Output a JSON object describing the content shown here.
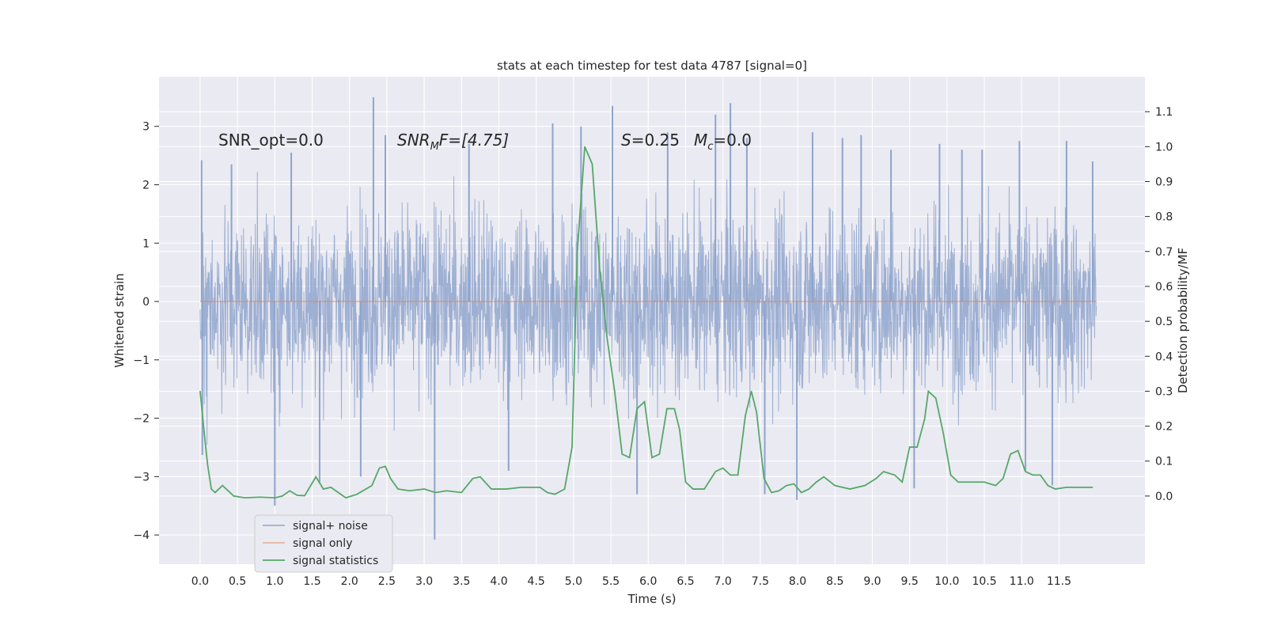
{
  "chart_data": {
    "type": "line",
    "title": "stats at each timestep for test data 4787 [signal=0]",
    "xlabel": "Time (s)",
    "ylabel": "Whitened strain",
    "y2label": "Detection probability/MF",
    "xlim": [
      -0.55,
      12.65
    ],
    "ylim": [
      -4.5,
      3.85
    ],
    "y2lim": [
      -0.195,
      1.2
    ],
    "xticks": [
      0.0,
      0.5,
      1.0,
      1.5,
      2.0,
      2.5,
      3.0,
      3.5,
      4.0,
      4.5,
      5.0,
      5.5,
      6.0,
      6.5,
      7.0,
      7.5,
      8.0,
      8.5,
      9.0,
      9.5,
      10.0,
      10.5,
      11.0,
      11.5
    ],
    "xtick_labels": [
      "0.0",
      "0.5",
      "1.0",
      "1.5",
      "2.0",
      "2.5",
      "3.0",
      "3.5",
      "4.0",
      "4.5",
      "5.0",
      "5.5",
      "6.0",
      "6.5",
      "7.0",
      "7.5",
      "8.0",
      "8.5",
      "9.0",
      "9.5",
      "10.0",
      "10.5",
      "11.0",
      "11.5"
    ],
    "yticks": [
      3,
      2,
      1,
      0,
      -1,
      -2,
      -3,
      -4
    ],
    "ytick_labels": [
      "3",
      "2",
      "1",
      "0",
      "−1",
      "−2",
      "−3",
      "−4"
    ],
    "y2ticks": [
      1.1,
      1.0,
      0.9,
      0.8,
      0.7,
      0.6,
      0.5,
      0.4,
      0.3,
      0.2,
      0.1,
      0.0
    ],
    "y2tick_labels": [
      "1.1",
      "1.0",
      "0.9",
      "0.8",
      "0.7",
      "0.6",
      "0.5",
      "0.4",
      "0.3",
      "0.2",
      "0.1",
      "0.0"
    ],
    "annotations": [
      {
        "id": "snr_opt",
        "text": "SNR_opt=0.0",
        "x": 0.2,
        "y": 2.6
      },
      {
        "id": "snr_mf",
        "prefix": "SNR",
        "sub": "M",
        "suffix": "F=[4.75]",
        "x": 2.6,
        "y": 2.6
      },
      {
        "id": "s_mc",
        "s_text": "S",
        "s_value": "=0.25",
        "mc_text": "M",
        "mc_sub": "c",
        "mc_value": "=0.0",
        "x": 5.6,
        "y": 2.6
      }
    ],
    "legend": {
      "position": "lower-left",
      "entries": [
        {
          "label": "signal+ noise",
          "color": "#8fa4cc"
        },
        {
          "label": "signal only",
          "color": "#dd8452"
        },
        {
          "label": "signal statistics",
          "color": "#55a868"
        }
      ]
    },
    "series": [
      {
        "name": "signal+ noise",
        "axis": "left",
        "color": "#8fa4cc",
        "description": "whitened noise, x from 0.0 to 12.0 s",
        "typical_range": [
          -1.55,
          1.55
        ],
        "x_range": [
          0.0,
          12.0
        ],
        "extreme_spikes": [
          {
            "x": 0.02,
            "y": 2.42
          },
          {
            "x": 0.03,
            "y": -2.63
          },
          {
            "x": 0.42,
            "y": 2.35
          },
          {
            "x": 1.0,
            "y": -3.5
          },
          {
            "x": 1.22,
            "y": 2.55
          },
          {
            "x": 1.6,
            "y": -3.1
          },
          {
            "x": 2.15,
            "y": -3.0
          },
          {
            "x": 2.32,
            "y": 3.5
          },
          {
            "x": 2.48,
            "y": 2.85
          },
          {
            "x": 3.14,
            "y": -4.08
          },
          {
            "x": 3.6,
            "y": 2.7
          },
          {
            "x": 4.13,
            "y": -2.9
          },
          {
            "x": 4.72,
            "y": 3.05
          },
          {
            "x": 5.1,
            "y": 3.0
          },
          {
            "x": 5.52,
            "y": 3.35
          },
          {
            "x": 5.85,
            "y": -3.3
          },
          {
            "x": 6.26,
            "y": 2.9
          },
          {
            "x": 6.9,
            "y": 3.2
          },
          {
            "x": 7.1,
            "y": 3.4
          },
          {
            "x": 7.32,
            "y": 2.8
          },
          {
            "x": 7.56,
            "y": -3.3
          },
          {
            "x": 7.99,
            "y": -3.4
          },
          {
            "x": 8.2,
            "y": 2.9
          },
          {
            "x": 8.6,
            "y": 2.8
          },
          {
            "x": 8.85,
            "y": 2.85
          },
          {
            "x": 9.25,
            "y": 2.6
          },
          {
            "x": 9.56,
            "y": -3.2
          },
          {
            "x": 9.9,
            "y": 2.7
          },
          {
            "x": 10.2,
            "y": 2.6
          },
          {
            "x": 10.47,
            "y": 2.6
          },
          {
            "x": 10.97,
            "y": 2.75
          },
          {
            "x": 11.05,
            "y": -2.9
          },
          {
            "x": 11.41,
            "y": -3.15
          },
          {
            "x": 11.6,
            "y": 2.75
          },
          {
            "x": 11.95,
            "y": 2.4
          }
        ]
      },
      {
        "name": "signal only",
        "axis": "left",
        "color": "#dd8452",
        "x": [
          0.0,
          12.0
        ],
        "y": [
          0.0,
          0.0
        ]
      },
      {
        "name": "signal statistics",
        "axis": "right",
        "color": "#55a868",
        "x": [
          0.0,
          0.06,
          0.1,
          0.15,
          0.2,
          0.25,
          0.3,
          0.35,
          0.45,
          0.6,
          0.8,
          1.0,
          1.1,
          1.2,
          1.3,
          1.4,
          1.55,
          1.65,
          1.75,
          1.85,
          1.95,
          2.1,
          2.3,
          2.4,
          2.48,
          2.55,
          2.65,
          2.8,
          3.0,
          3.15,
          3.3,
          3.5,
          3.65,
          3.75,
          3.9,
          4.1,
          4.3,
          4.55,
          4.65,
          4.75,
          4.88,
          4.98,
          5.05,
          5.15,
          5.25,
          5.35,
          5.45,
          5.55,
          5.65,
          5.75,
          5.85,
          5.95,
          6.05,
          6.15,
          6.25,
          6.35,
          6.42,
          6.5,
          6.6,
          6.75,
          6.9,
          7.0,
          7.1,
          7.2,
          7.3,
          7.38,
          7.45,
          7.55,
          7.65,
          7.75,
          7.85,
          7.95,
          8.05,
          8.15,
          8.25,
          8.35,
          8.5,
          8.7,
          8.9,
          9.05,
          9.15,
          9.3,
          9.4,
          9.5,
          9.6,
          9.7,
          9.75,
          9.85,
          9.95,
          10.05,
          10.15,
          10.3,
          10.5,
          10.65,
          10.75,
          10.85,
          10.95,
          11.05,
          11.15,
          11.25,
          11.35,
          11.45,
          11.6,
          11.75,
          11.85,
          11.95
        ],
        "y": [
          0.3,
          0.17,
          0.09,
          0.02,
          0.01,
          0.02,
          0.03,
          0.02,
          0.0,
          -0.005,
          -0.003,
          -0.005,
          0.0,
          0.015,
          0.002,
          0.001,
          0.055,
          0.02,
          0.025,
          0.01,
          -0.005,
          0.005,
          0.03,
          0.08,
          0.085,
          0.05,
          0.02,
          0.015,
          0.02,
          0.01,
          0.015,
          0.01,
          0.05,
          0.055,
          0.02,
          0.02,
          0.025,
          0.025,
          0.01,
          0.005,
          0.02,
          0.14,
          0.7,
          1.0,
          0.95,
          0.65,
          0.45,
          0.3,
          0.12,
          0.11,
          0.25,
          0.27,
          0.11,
          0.12,
          0.25,
          0.25,
          0.19,
          0.04,
          0.02,
          0.02,
          0.07,
          0.08,
          0.06,
          0.06,
          0.23,
          0.3,
          0.24,
          0.05,
          0.01,
          0.015,
          0.03,
          0.035,
          0.01,
          0.02,
          0.04,
          0.055,
          0.03,
          0.02,
          0.03,
          0.05,
          0.07,
          0.06,
          0.04,
          0.14,
          0.14,
          0.22,
          0.3,
          0.28,
          0.18,
          0.06,
          0.04,
          0.04,
          0.04,
          0.03,
          0.05,
          0.12,
          0.13,
          0.07,
          0.06,
          0.06,
          0.03,
          0.02,
          0.025,
          0.025,
          0.025,
          0.025
        ]
      }
    ]
  }
}
